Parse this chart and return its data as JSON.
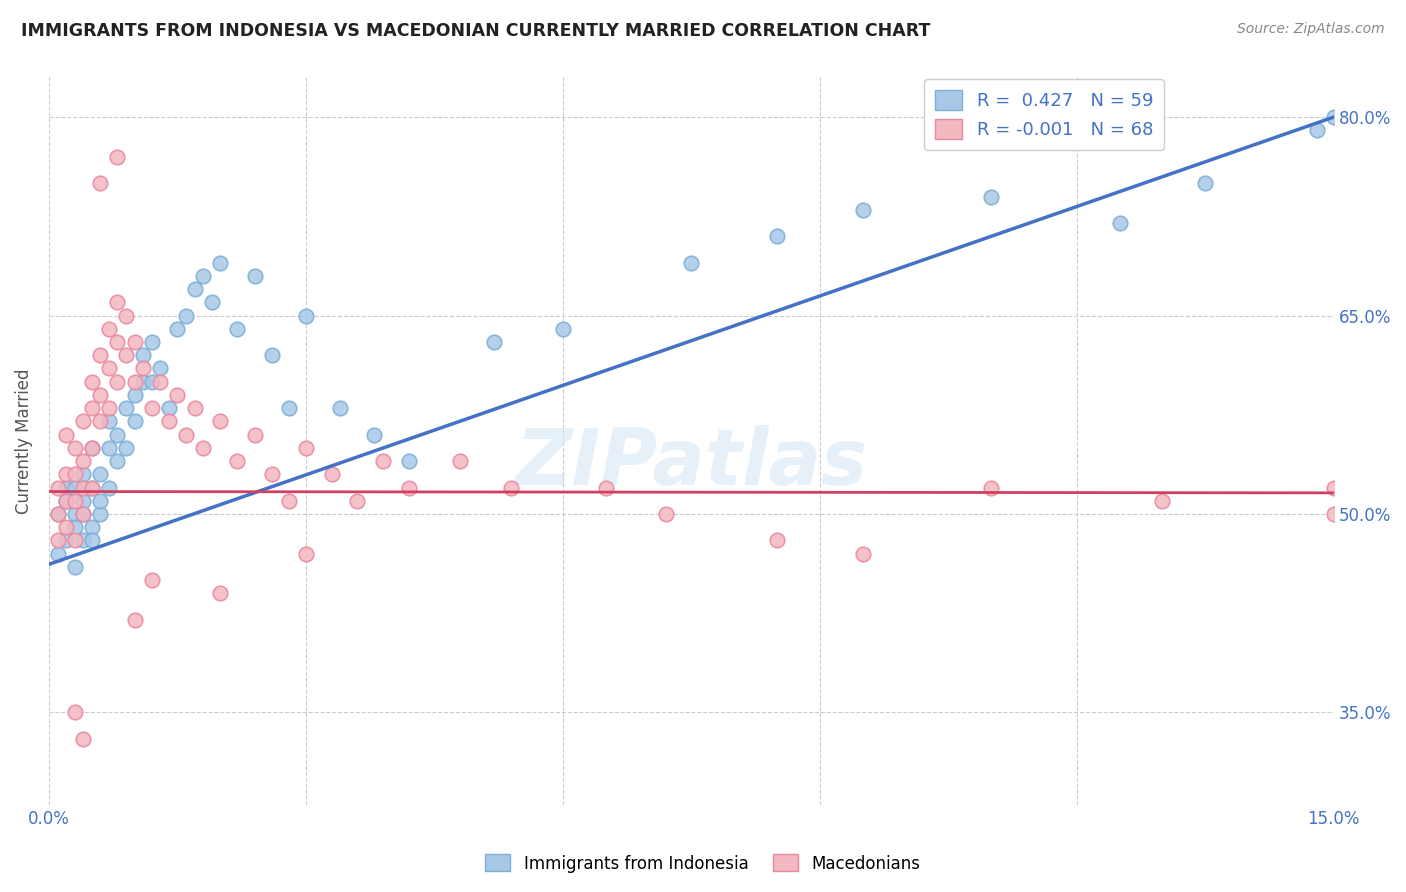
{
  "title": "IMMIGRANTS FROM INDONESIA VS MACEDONIAN CURRENTLY MARRIED CORRELATION CHART",
  "source": "Source: ZipAtlas.com",
  "ylabel": "Currently Married",
  "x_min": 0.0,
  "x_max": 0.15,
  "y_min": 0.28,
  "y_max": 0.83,
  "x_ticks": [
    0.0,
    0.03,
    0.06,
    0.09,
    0.12,
    0.15
  ],
  "x_tick_labels": [
    "0.0%",
    "",
    "",
    "",
    "",
    "15.0%"
  ],
  "y_ticks": [
    0.35,
    0.5,
    0.65,
    0.8
  ],
  "y_tick_labels": [
    "35.0%",
    "50.0%",
    "65.0%",
    "80.0%"
  ],
  "watermark": "ZIPatlas",
  "legend_blue_r": "R =  0.427",
  "legend_blue_n": "N = 59",
  "legend_pink_r": "R = -0.001",
  "legend_pink_n": "N = 68",
  "legend_label_blue": "Immigrants from Indonesia",
  "legend_label_pink": "Macedonians",
  "blue_color": "#a8c8e8",
  "blue_edge_color": "#7bafd4",
  "pink_color": "#f4b8c1",
  "pink_edge_color": "#e888a0",
  "blue_line_color": "#4472C4",
  "pink_line_color": "#d04060",
  "blue_scatter_x": [
    0.001,
    0.001,
    0.002,
    0.002,
    0.002,
    0.003,
    0.003,
    0.003,
    0.003,
    0.004,
    0.004,
    0.004,
    0.004,
    0.005,
    0.005,
    0.005,
    0.005,
    0.006,
    0.006,
    0.006,
    0.007,
    0.007,
    0.007,
    0.008,
    0.008,
    0.009,
    0.009,
    0.01,
    0.01,
    0.011,
    0.011,
    0.012,
    0.012,
    0.013,
    0.014,
    0.015,
    0.016,
    0.017,
    0.018,
    0.019,
    0.02,
    0.022,
    0.024,
    0.026,
    0.028,
    0.03,
    0.034,
    0.038,
    0.042,
    0.052,
    0.06,
    0.075,
    0.085,
    0.095,
    0.11,
    0.125,
    0.135,
    0.148,
    0.15
  ],
  "blue_scatter_y": [
    0.5,
    0.47,
    0.52,
    0.48,
    0.51,
    0.5,
    0.49,
    0.52,
    0.46,
    0.51,
    0.53,
    0.48,
    0.5,
    0.55,
    0.52,
    0.49,
    0.48,
    0.53,
    0.5,
    0.51,
    0.57,
    0.55,
    0.52,
    0.56,
    0.54,
    0.58,
    0.55,
    0.59,
    0.57,
    0.6,
    0.62,
    0.63,
    0.6,
    0.61,
    0.58,
    0.64,
    0.65,
    0.67,
    0.68,
    0.66,
    0.69,
    0.64,
    0.68,
    0.62,
    0.58,
    0.65,
    0.58,
    0.56,
    0.54,
    0.63,
    0.64,
    0.69,
    0.71,
    0.73,
    0.74,
    0.72,
    0.75,
    0.79,
    0.8
  ],
  "pink_scatter_x": [
    0.001,
    0.001,
    0.001,
    0.002,
    0.002,
    0.002,
    0.002,
    0.003,
    0.003,
    0.003,
    0.003,
    0.004,
    0.004,
    0.004,
    0.004,
    0.005,
    0.005,
    0.005,
    0.005,
    0.006,
    0.006,
    0.006,
    0.007,
    0.007,
    0.007,
    0.008,
    0.008,
    0.008,
    0.009,
    0.009,
    0.01,
    0.01,
    0.011,
    0.012,
    0.013,
    0.014,
    0.015,
    0.016,
    0.017,
    0.018,
    0.02,
    0.022,
    0.024,
    0.026,
    0.028,
    0.03,
    0.033,
    0.036,
    0.039,
    0.042,
    0.048,
    0.054,
    0.065,
    0.072,
    0.085,
    0.095,
    0.11,
    0.13,
    0.15,
    0.15,
    0.02,
    0.03,
    0.006,
    0.008,
    0.003,
    0.004,
    0.01,
    0.012
  ],
  "pink_scatter_y": [
    0.52,
    0.5,
    0.48,
    0.56,
    0.53,
    0.51,
    0.49,
    0.55,
    0.53,
    0.51,
    0.48,
    0.57,
    0.54,
    0.52,
    0.5,
    0.6,
    0.58,
    0.55,
    0.52,
    0.62,
    0.59,
    0.57,
    0.64,
    0.61,
    0.58,
    0.66,
    0.63,
    0.6,
    0.65,
    0.62,
    0.63,
    0.6,
    0.61,
    0.58,
    0.6,
    0.57,
    0.59,
    0.56,
    0.58,
    0.55,
    0.57,
    0.54,
    0.56,
    0.53,
    0.51,
    0.55,
    0.53,
    0.51,
    0.54,
    0.52,
    0.54,
    0.52,
    0.52,
    0.5,
    0.48,
    0.47,
    0.52,
    0.51,
    0.52,
    0.5,
    0.44,
    0.47,
    0.75,
    0.77,
    0.35,
    0.33,
    0.42,
    0.45
  ],
  "blue_trend_x": [
    0.0,
    0.15
  ],
  "blue_trend_y": [
    0.462,
    0.8
  ],
  "pink_trend_x": [
    0.0,
    0.15
  ],
  "pink_trend_y": [
    0.517,
    0.516
  ]
}
